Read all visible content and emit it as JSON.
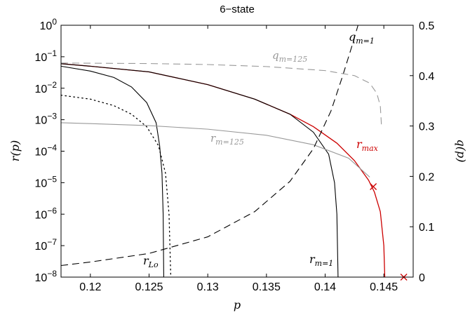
{
  "chart_data": {
    "type": "line",
    "title": "6−state",
    "xlabel": "p",
    "ylabel_left": "r(p)",
    "ylabel_right": "q(p)",
    "xlim": [
      0.1175,
      0.1475
    ],
    "ylim_left": [
      1e-08,
      1
    ],
    "ylim_left_scale": "log",
    "ylim_right": [
      0,
      0.5
    ],
    "x_ticks": [
      "0.12",
      "0.125",
      "0.13",
      "0.135",
      "0.14",
      "0.145"
    ],
    "y_ticks_left": [
      {
        "base": "10",
        "exp": "0",
        "value": 1
      },
      {
        "base": "10",
        "exp": "−1",
        "value": 0.1
      },
      {
        "base": "10",
        "exp": "−2",
        "value": 0.01
      },
      {
        "base": "10",
        "exp": "−3",
        "value": 0.001
      },
      {
        "base": "10",
        "exp": "−4",
        "value": 0.0001
      },
      {
        "base": "10",
        "exp": "−5",
        "value": 1e-05
      },
      {
        "base": "10",
        "exp": "−6",
        "value": 1e-06
      },
      {
        "base": "10",
        "exp": "−7",
        "value": 1e-07
      },
      {
        "base": "10",
        "exp": "−8",
        "value": 1e-08
      }
    ],
    "y_ticks_right": [
      "0",
      "0.1",
      "0.2",
      "0.3",
      "0.4",
      "0.5"
    ],
    "grid": false,
    "series": [
      {
        "name": "r_max",
        "label_main": "r",
        "label_sub": "max",
        "axis": "left",
        "color": "#cc0000",
        "dash": "solid",
        "width": 1.3,
        "points": [
          [
            0.1175,
            0.06
          ],
          [
            0.12,
            0.05
          ],
          [
            0.125,
            0.033
          ],
          [
            0.13,
            0.013
          ],
          [
            0.134,
            0.0045
          ],
          [
            0.137,
            0.0015
          ],
          [
            0.139,
            0.0006
          ],
          [
            0.141,
            0.00018
          ],
          [
            0.1425,
            5e-05
          ],
          [
            0.1437,
            1.2e-05
          ],
          [
            0.1442,
            5e-06
          ],
          [
            0.1447,
            1.2e-06
          ],
          [
            0.145,
            1e-07
          ],
          [
            0.14508,
            1e-08
          ]
        ]
      },
      {
        "name": "r_m=1",
        "label_main": "r",
        "label_sub": "m=1",
        "axis": "left",
        "color": "#000000",
        "dash": "solid",
        "width": 1.1,
        "points": [
          [
            0.1175,
            0.06
          ],
          [
            0.12,
            0.05
          ],
          [
            0.125,
            0.033
          ],
          [
            0.13,
            0.013
          ],
          [
            0.134,
            0.0045
          ],
          [
            0.137,
            0.0015
          ],
          [
            0.139,
            0.0004
          ],
          [
            0.1403,
            8e-05
          ],
          [
            0.1408,
            1e-05
          ],
          [
            0.141,
            1e-06
          ],
          [
            0.1411,
            1e-08
          ]
        ]
      },
      {
        "name": "r_Lo",
        "label_main": "r",
        "label_sub": "Lo",
        "axis": "left",
        "color": "#000000",
        "dash": "solid",
        "width": 1.1,
        "points": [
          [
            0.1175,
            0.05
          ],
          [
            0.12,
            0.035
          ],
          [
            0.122,
            0.022
          ],
          [
            0.1235,
            0.011
          ],
          [
            0.1248,
            0.0035
          ],
          [
            0.1256,
            0.0008
          ],
          [
            0.1259,
            0.00015
          ],
          [
            0.1261,
            2e-05
          ],
          [
            0.1262,
            1e-06
          ],
          [
            0.12625,
            1e-08
          ]
        ]
      },
      {
        "name": "r_Lo_dotted",
        "axis": "left",
        "color": "#000000",
        "dash": "dotted",
        "width": 1.3,
        "points": [
          [
            0.1175,
            0.006
          ],
          [
            0.12,
            0.0045
          ],
          [
            0.122,
            0.0028
          ],
          [
            0.1235,
            0.0015
          ],
          [
            0.1248,
            0.0006
          ],
          [
            0.1258,
            0.00015
          ],
          [
            0.1264,
            2e-05
          ],
          [
            0.1267,
            1e-06
          ],
          [
            0.12685,
            1e-08
          ]
        ]
      },
      {
        "name": "r_m=125",
        "label_main": "r",
        "label_sub": "m=125",
        "axis": "left",
        "color": "#999999",
        "dash": "solid",
        "width": 1.1,
        "points": [
          [
            0.1175,
            0.0008
          ],
          [
            0.12,
            0.00075
          ],
          [
            0.125,
            0.00065
          ],
          [
            0.13,
            0.0005
          ],
          [
            0.135,
            0.00032
          ],
          [
            0.139,
            0.00016
          ],
          [
            0.142,
            6e-05
          ],
          [
            0.1438,
            1.5e-05
          ]
        ]
      },
      {
        "name": "q_m=1",
        "label_main": "q",
        "label_sub": "m=1",
        "axis": "right",
        "color": "#000000",
        "dash": "dashed",
        "width": 1.1,
        "points": [
          [
            0.1175,
            0.023
          ],
          [
            0.12,
            0.03
          ],
          [
            0.125,
            0.047
          ],
          [
            0.13,
            0.08
          ],
          [
            0.134,
            0.13
          ],
          [
            0.137,
            0.19
          ],
          [
            0.139,
            0.255
          ],
          [
            0.1405,
            0.33
          ],
          [
            0.1415,
            0.4
          ],
          [
            0.1423,
            0.46
          ],
          [
            0.1428,
            0.5
          ]
        ]
      },
      {
        "name": "q_m=125",
        "label_main": "q",
        "label_sub": "m=125",
        "axis": "right",
        "color": "#999999",
        "dash": "dashed",
        "width": 1.1,
        "points": [
          [
            0.1175,
            0.425
          ],
          [
            0.125,
            0.424
          ],
          [
            0.13,
            0.422
          ],
          [
            0.135,
            0.418
          ],
          [
            0.14,
            0.41
          ],
          [
            0.1425,
            0.4
          ],
          [
            0.1438,
            0.385
          ],
          [
            0.1444,
            0.365
          ],
          [
            0.1447,
            0.34
          ],
          [
            0.1448,
            0.3
          ]
        ]
      }
    ],
    "markers": [
      {
        "x": 0.1441,
        "y": 7.5e-06,
        "axis": "left",
        "shape": "x",
        "color": "#cc0000"
      },
      {
        "x": 0.1467,
        "y": 0.0,
        "axis": "right",
        "shape": "x",
        "color": "#cc0000"
      }
    ]
  }
}
